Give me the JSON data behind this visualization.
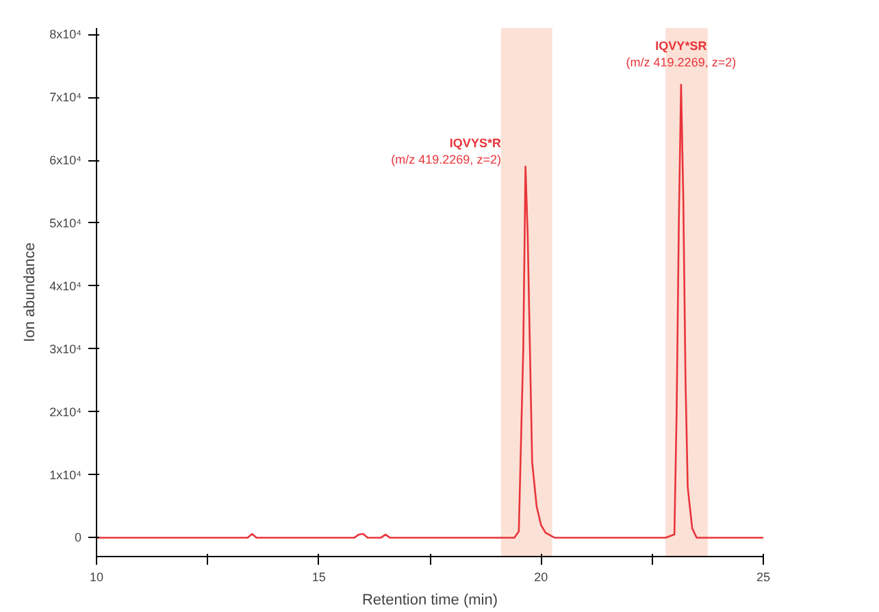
{
  "chart_data": {
    "type": "line",
    "xlabel": "Retention time (min)",
    "ylabel": "Ion abundance",
    "xlim": [
      10,
      25
    ],
    "ylim": [
      -3000,
      81000
    ],
    "xticks": [
      10,
      {
        "value": 12.5,
        "label": null
      },
      15,
      {
        "value": 17.5,
        "label": null
      },
      20,
      {
        "value": 22.5,
        "label": null
      },
      25
    ],
    "yticks": [
      0,
      {
        "value": 10000,
        "label": "1x10⁴"
      },
      {
        "value": 20000,
        "label": "2x10⁴"
      },
      {
        "value": 30000,
        "label": "3x10⁴"
      },
      {
        "value": 40000,
        "label": "4x10⁴"
      },
      {
        "value": 50000,
        "label": "5x10⁴"
      },
      {
        "value": 60000,
        "label": "6x10⁴"
      },
      {
        "value": 70000,
        "label": "7x10⁴"
      },
      {
        "value": 80000,
        "label": "8x10⁴"
      }
    ],
    "grid": false,
    "marker": "none",
    "line_style": "solid",
    "series": [
      {
        "color": "#e8343a",
        "x": [
          10,
          11,
          12,
          13,
          13.4,
          13.5,
          13.6,
          14,
          15,
          15.8,
          15.9,
          16.0,
          16.1,
          16.4,
          16.5,
          16.6,
          17,
          18,
          19,
          19.4,
          19.5,
          19.6,
          19.65,
          19.7,
          19.75,
          19.8,
          19.9,
          20.0,
          20.1,
          20.3,
          21,
          22,
          22.8,
          23.0,
          23.05,
          23.1,
          23.15,
          23.2,
          23.25,
          23.3,
          23.4,
          23.5,
          24,
          25
        ],
        "values": [
          0,
          0,
          0,
          0,
          0,
          600,
          0,
          0,
          0,
          0,
          500,
          600,
          0,
          0,
          500,
          0,
          0,
          0,
          0,
          0,
          1000,
          30000,
          59000,
          48000,
          30000,
          12000,
          5000,
          2000,
          800,
          0,
          0,
          0,
          0,
          500,
          20000,
          50000,
          72000,
          54000,
          25000,
          8000,
          1500,
          0,
          0,
          0
        ]
      }
    ],
    "bands": [
      {
        "axis": "x",
        "from": 19.1,
        "to": 20.25,
        "color": "#fbd9cc"
      },
      {
        "axis": "x",
        "from": 22.8,
        "to": 23.75,
        "color": "#fbd9cc"
      }
    ],
    "annotations": [
      {
        "text": "IQVYS*R\n(m/z 419.2269, z=2)",
        "x": 19.7,
        "y": 59000
      },
      {
        "text": "IQVY*SR\n(m/z 419.2269, z=2)",
        "x": 23.15,
        "y": 72000
      }
    ]
  }
}
